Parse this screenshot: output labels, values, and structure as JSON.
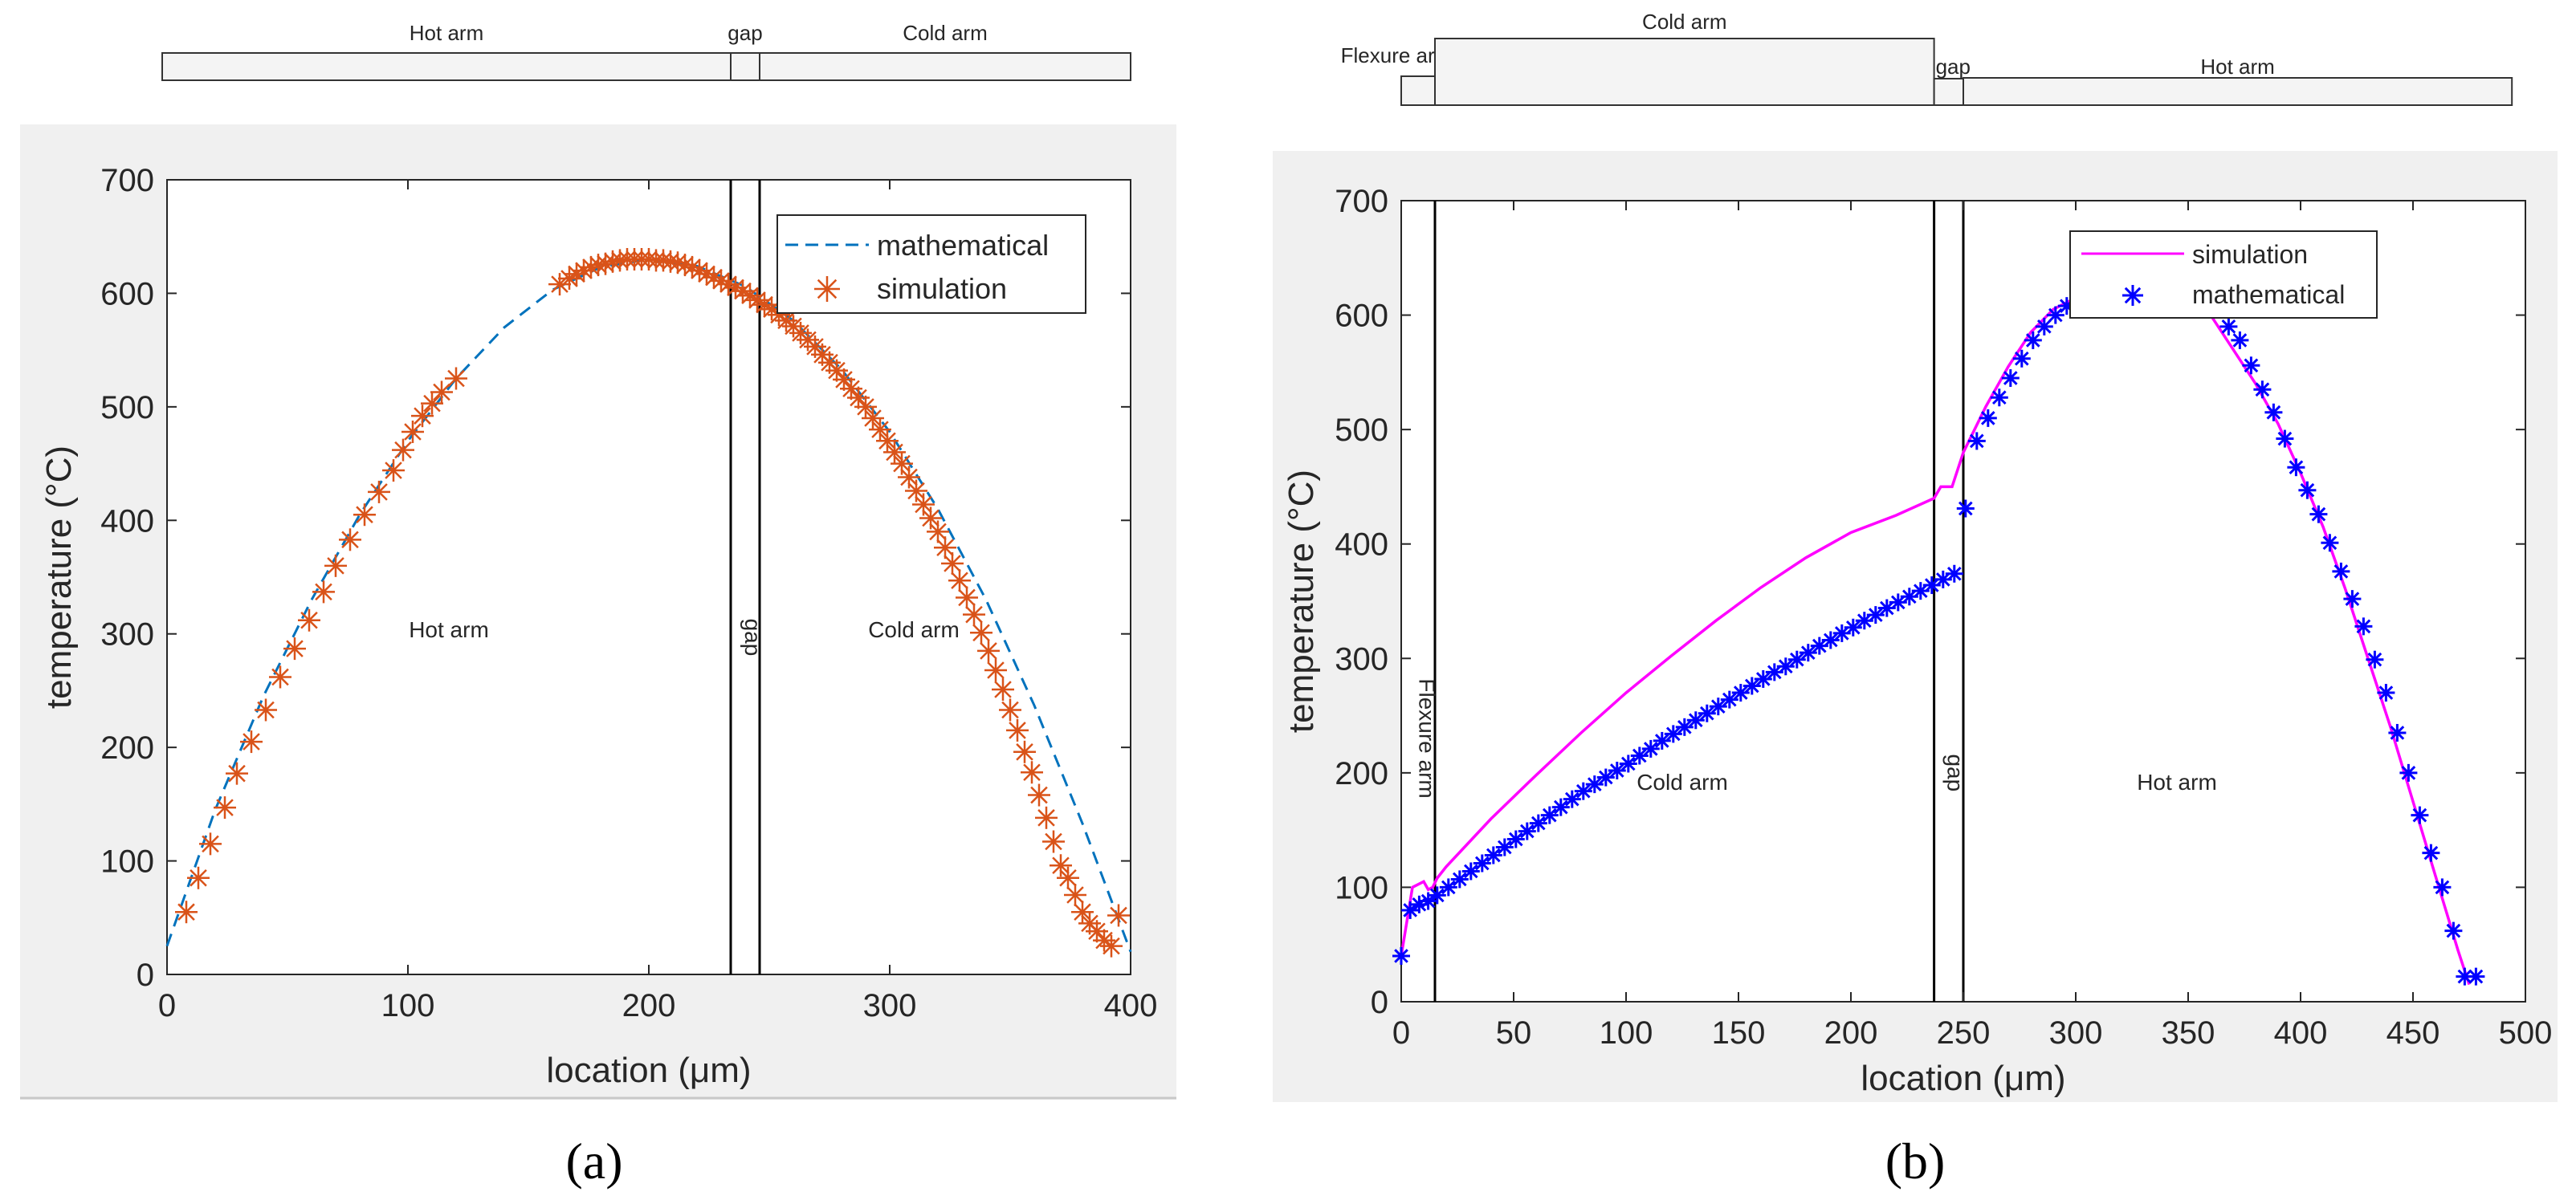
{
  "colors": {
    "panel_a_background": "#f0f0f0",
    "panel_b_background": "#f0f0f0",
    "plot_background": "#ffffff",
    "a_mathematical": "#0072bd",
    "a_simulation": "#d95319",
    "b_simulation": "#ff00ff",
    "b_mathematical": "#0000ff"
  },
  "panels": [
    {
      "label": "(a)"
    },
    {
      "label": "(b)"
    }
  ],
  "chart_data": [
    {
      "type": "line",
      "panel": "(a)",
      "xlabel": "location (μm)",
      "ylabel": "temperature (°C)",
      "xlim": [
        0,
        400
      ],
      "ylim": [
        0,
        700
      ],
      "xticks": [
        0,
        100,
        200,
        300,
        400
      ],
      "yticks": [
        0,
        100,
        200,
        300,
        400,
        500,
        600,
        700
      ],
      "legend_position": "top-right",
      "region_lines_x": [
        234,
        246
      ],
      "regions": [
        {
          "label": "Hot arm",
          "x": 117,
          "y": 297
        },
        {
          "label": "gap",
          "x": 240,
          "y": 297,
          "rotated": true
        },
        {
          "label": "Cold arm",
          "x": 310,
          "y": 297
        }
      ],
      "schematic": [
        {
          "label": "Hot arm",
          "x0": -2,
          "x1": 234
        },
        {
          "label": "gap",
          "x0": 234,
          "x1": 246
        },
        {
          "label": "Cold arm",
          "x0": 246,
          "x1": 400
        }
      ],
      "series": [
        {
          "name": "mathematical",
          "style": "dashed",
          "x": [
            0,
            20,
            40,
            60,
            80,
            100,
            120,
            140,
            160,
            180,
            200,
            220,
            240,
            260,
            280,
            300,
            320,
            340,
            360,
            380,
            400
          ],
          "y": [
            25,
            145,
            245,
            330,
            405,
            470,
            525,
            570,
            603,
            623,
            630,
            624,
            606,
            576,
            533,
            478,
            410,
            330,
            237,
            133,
            20
          ]
        },
        {
          "name": "simulation",
          "style": "asterisk",
          "x": [
            8,
            13,
            18,
            24,
            29,
            35,
            41,
            47,
            53,
            59,
            65,
            70,
            76,
            82,
            88,
            94,
            98,
            102,
            106,
            110,
            114,
            120,
            163,
            167,
            170,
            173,
            176,
            179,
            182,
            185,
            188,
            191,
            194,
            197,
            200,
            203,
            206,
            209,
            212,
            215,
            218,
            221,
            224,
            227,
            230,
            233,
            236,
            239,
            242,
            245,
            248,
            251,
            254,
            257,
            260,
            263,
            266,
            269,
            272,
            275,
            278,
            281,
            284,
            287,
            290,
            293,
            296,
            299,
            302,
            305,
            308,
            311,
            314,
            317,
            320,
            323,
            326,
            329,
            332,
            335,
            338,
            341,
            344,
            347,
            350,
            353,
            356,
            359,
            362,
            365,
            368,
            371,
            374,
            377,
            380,
            383,
            386,
            389,
            392,
            395
          ],
          "y": [
            55,
            85,
            115,
            147,
            177,
            205,
            233,
            262,
            287,
            312,
            337,
            360,
            383,
            405,
            425,
            444,
            462,
            478,
            492,
            503,
            513,
            525,
            608,
            613,
            617,
            620,
            623,
            625,
            626,
            628,
            629,
            630,
            630,
            630,
            630,
            629,
            629,
            628,
            627,
            625,
            623,
            620,
            617,
            614,
            611,
            608,
            605,
            602,
            598,
            594,
            590,
            586,
            581,
            576,
            571,
            565,
            559,
            553,
            546,
            539,
            532,
            524,
            516,
            508,
            500,
            490,
            480,
            470,
            460,
            450,
            438,
            426,
            414,
            402,
            390,
            376,
            362,
            347,
            332,
            317,
            301,
            285,
            268,
            251,
            233,
            215,
            196,
            178,
            158,
            138,
            117,
            96,
            85,
            70,
            55,
            45,
            38,
            30,
            25,
            52
          ]
        }
      ]
    },
    {
      "type": "line",
      "panel": "(b)",
      "xlabel": "location (μm)",
      "ylabel": "temperature (°C)",
      "xlim": [
        0,
        500
      ],
      "ylim": [
        0,
        700
      ],
      "xticks": [
        0,
        50,
        100,
        150,
        200,
        250,
        300,
        350,
        400,
        450,
        500
      ],
      "yticks": [
        0,
        100,
        200,
        300,
        400,
        500,
        600,
        700
      ],
      "legend_position": "top-right",
      "region_lines_x": [
        15,
        237,
        250
      ],
      "regions": [
        {
          "label": "Flexure arm",
          "x": 8,
          "y": 230,
          "rotated": true
        },
        {
          "label": "Cold arm",
          "x": 125,
          "y": 185
        },
        {
          "label": "gap",
          "x": 243,
          "y": 200,
          "rotated": true
        },
        {
          "label": "Hot arm",
          "x": 345,
          "y": 185
        }
      ],
      "schematic": [
        {
          "label": "Flexure arm",
          "x0": 0,
          "x1": 15
        },
        {
          "label": "Cold arm",
          "x0": 15,
          "x1": 237
        },
        {
          "label": "gap",
          "x0": 237,
          "x1": 250
        },
        {
          "label": "Hot arm",
          "x0": 250,
          "x1": 494
        }
      ],
      "series": [
        {
          "name": "simulation",
          "style": "solid",
          "x": [
            0,
            5,
            10,
            12,
            14,
            16,
            20,
            40,
            60,
            80,
            100,
            120,
            140,
            160,
            180,
            200,
            220,
            237,
            240,
            245,
            250,
            260,
            270,
            280,
            290,
            300,
            310,
            320,
            330,
            340,
            350,
            360,
            370,
            380,
            390,
            400,
            410,
            420,
            430,
            440,
            450,
            460,
            470,
            475
          ],
          "y": [
            40,
            100,
            105,
            98,
            100,
            108,
            118,
            160,
            198,
            235,
            270,
            302,
            333,
            362,
            388,
            410,
            425,
            440,
            450,
            450,
            480,
            520,
            555,
            585,
            605,
            615,
            630,
            640,
            642,
            640,
            630,
            600,
            570,
            540,
            505,
            462,
            415,
            360,
            300,
            240,
            175,
            110,
            45,
            15
          ]
        },
        {
          "name": "mathematical",
          "style": "asterisk",
          "x": [
            0,
            4,
            8,
            12,
            16,
            21,
            26,
            31,
            36,
            41,
            46,
            51,
            56,
            61,
            66,
            71,
            76,
            81,
            86,
            91,
            96,
            101,
            106,
            111,
            116,
            121,
            126,
            131,
            136,
            141,
            146,
            151,
            156,
            161,
            166,
            171,
            176,
            181,
            186,
            191,
            196,
            201,
            206,
            211,
            216,
            221,
            226,
            231,
            236,
            241,
            246,
            251,
            256,
            261,
            266,
            271,
            276,
            281,
            286,
            291,
            296,
            368,
            373,
            378,
            383,
            388,
            393,
            398,
            403,
            408,
            413,
            418,
            423,
            428,
            433,
            438,
            443,
            448,
            453,
            458,
            463,
            468,
            473,
            478
          ],
          "y": [
            40,
            80,
            85,
            88,
            93,
            100,
            107,
            114,
            121,
            128,
            135,
            142,
            149,
            156,
            163,
            170,
            177,
            184,
            190,
            196,
            202,
            208,
            215,
            221,
            228,
            234,
            240,
            246,
            252,
            258,
            264,
            270,
            276,
            282,
            288,
            293,
            299,
            305,
            311,
            316,
            322,
            327,
            333,
            338,
            344,
            349,
            354,
            359,
            364,
            369,
            374,
            431,
            490,
            510,
            528,
            545,
            562,
            578,
            590,
            600,
            608,
            590,
            578,
            556,
            535,
            515,
            492,
            467,
            447,
            426,
            401,
            376,
            352,
            328,
            299,
            270,
            235,
            200,
            163,
            130,
            100,
            62,
            22,
            22
          ]
        }
      ]
    }
  ]
}
